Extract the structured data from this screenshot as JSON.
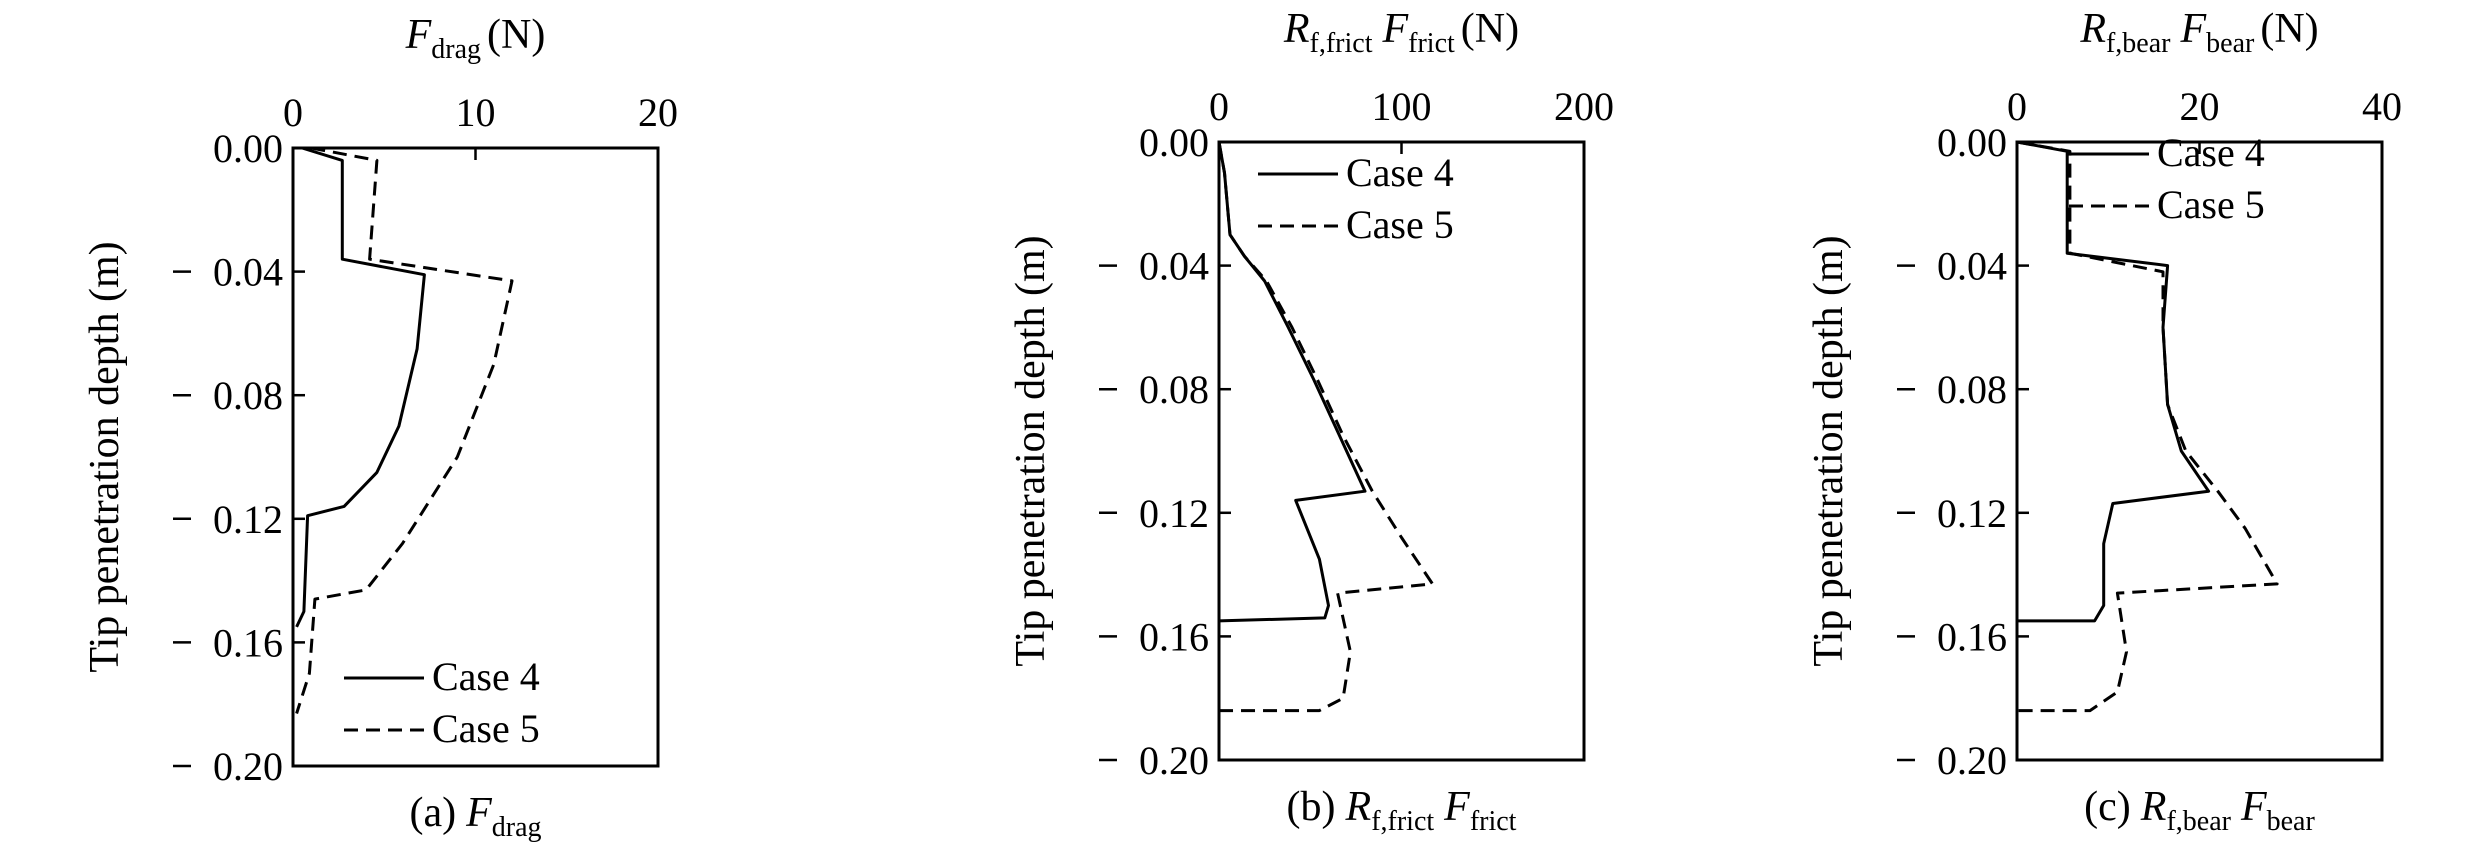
{
  "figure": {
    "y_axis_label": "Tip penetration depth (m)"
  },
  "chart_data": [
    {
      "type": "line",
      "top_label": {
        "main": "F",
        "sub": "drag",
        "unit": "(N)"
      },
      "caption": {
        "prefix": "(a)",
        "main": "F",
        "sub": "drag"
      },
      "xlim": [
        0,
        20
      ],
      "ylim": [
        -0.2,
        0.0
      ],
      "x_ticks": [
        "0",
        "10",
        "20"
      ],
      "y_ticks": [
        "0.00",
        "-0.04",
        "-0.08",
        "-0.12",
        "-0.16",
        "-0.20"
      ],
      "grid": false,
      "legend_position": "bottom-right",
      "series": [
        {
          "name": "Case 4",
          "style": "solid",
          "points": [
            [
              0.5,
              0.0
            ],
            [
              2.7,
              -0.004
            ],
            [
              2.7,
              -0.036
            ],
            [
              7.2,
              -0.041
            ],
            [
              6.8,
              -0.065
            ],
            [
              5.8,
              -0.09
            ],
            [
              4.6,
              -0.105
            ],
            [
              2.8,
              -0.116
            ],
            [
              0.8,
              -0.119
            ],
            [
              0.6,
              -0.15
            ],
            [
              0.2,
              -0.155
            ]
          ]
        },
        {
          "name": "Case 5",
          "style": "dashed",
          "points": [
            [
              1.0,
              0.0
            ],
            [
              4.6,
              -0.004
            ],
            [
              4.2,
              -0.036
            ],
            [
              12.0,
              -0.043
            ],
            [
              11.0,
              -0.07
            ],
            [
              9.0,
              -0.1
            ],
            [
              6.0,
              -0.128
            ],
            [
              4.0,
              -0.143
            ],
            [
              1.2,
              -0.146
            ],
            [
              0.9,
              -0.17
            ],
            [
              0.2,
              -0.183
            ]
          ]
        }
      ]
    },
    {
      "type": "line",
      "top_label": {
        "main": "R",
        "sub1": "f,frict",
        "main2": "F",
        "sub2": "frict",
        "unit": "(N)"
      },
      "caption": {
        "prefix": "(b)",
        "main": "R",
        "sub": "f,frict",
        "main2": "F",
        "sub2": "frict"
      },
      "xlim": [
        0,
        200
      ],
      "ylim": [
        -0.2,
        0.0
      ],
      "x_ticks": [
        "0",
        "100",
        "200"
      ],
      "y_ticks": [
        "0.00",
        "-0.04",
        "-0.08",
        "-0.12",
        "-0.16",
        "-0.20"
      ],
      "grid": false,
      "legend_position": "top-right",
      "series": [
        {
          "name": "Case 4",
          "style": "solid",
          "points": [
            [
              0,
              0.0
            ],
            [
              3,
              -0.01
            ],
            [
              6,
              -0.03
            ],
            [
              14,
              -0.037
            ],
            [
              25,
              -0.045
            ],
            [
              38,
              -0.06
            ],
            [
              52,
              -0.077
            ],
            [
              66,
              -0.095
            ],
            [
              80,
              -0.113
            ],
            [
              42,
              -0.116
            ],
            [
              55,
              -0.135
            ],
            [
              60,
              -0.15
            ],
            [
              58,
              -0.154
            ],
            [
              0,
              -0.155
            ]
          ]
        },
        {
          "name": "Case 5",
          "style": "dashed",
          "points": [
            [
              0,
              0.0
            ],
            [
              3,
              -0.01
            ],
            [
              6,
              -0.03
            ],
            [
              14,
              -0.037
            ],
            [
              26,
              -0.045
            ],
            [
              40,
              -0.06
            ],
            [
              54,
              -0.077
            ],
            [
              68,
              -0.095
            ],
            [
              84,
              -0.113
            ],
            [
              100,
              -0.128
            ],
            [
              117,
              -0.143
            ],
            [
              65,
              -0.146
            ],
            [
              72,
              -0.165
            ],
            [
              68,
              -0.18
            ],
            [
              55,
              -0.184
            ],
            [
              0,
              -0.184
            ]
          ]
        }
      ]
    },
    {
      "type": "line",
      "top_label": {
        "main": "R",
        "sub1": "f,bear",
        "main2": "F",
        "sub2": "bear",
        "unit": "(N)"
      },
      "caption": {
        "prefix": "(c)",
        "main": "R",
        "sub": "f,bear",
        "main2": "F",
        "sub2": "bear"
      },
      "xlim": [
        0,
        40
      ],
      "ylim": [
        -0.2,
        0.0
      ],
      "x_ticks": [
        "0",
        "20",
        "40"
      ],
      "y_ticks": [
        "0.00",
        "-0.04",
        "-0.08",
        "-0.12",
        "-0.16",
        "-0.20"
      ],
      "grid": false,
      "legend_position": "top-right",
      "series": [
        {
          "name": "Case 4",
          "style": "solid",
          "points": [
            [
              0,
              0.0
            ],
            [
              5.5,
              -0.003
            ],
            [
              5.5,
              -0.036
            ],
            [
              16.5,
              -0.04
            ],
            [
              16.0,
              -0.06
            ],
            [
              16.5,
              -0.085
            ],
            [
              18.0,
              -0.1
            ],
            [
              21.0,
              -0.113
            ],
            [
              10.5,
              -0.117
            ],
            [
              9.5,
              -0.13
            ],
            [
              9.5,
              -0.15
            ],
            [
              8.5,
              -0.155
            ],
            [
              0,
              -0.155
            ]
          ]
        },
        {
          "name": "Case 5",
          "style": "dashed",
          "points": [
            [
              0,
              0.0
            ],
            [
              5.8,
              -0.003
            ],
            [
              5.8,
              -0.036
            ],
            [
              16.0,
              -0.042
            ],
            [
              16.0,
              -0.06
            ],
            [
              16.5,
              -0.085
            ],
            [
              18.5,
              -0.1
            ],
            [
              22.0,
              -0.113
            ],
            [
              25.0,
              -0.125
            ],
            [
              28.5,
              -0.143
            ],
            [
              11.0,
              -0.146
            ],
            [
              12.0,
              -0.165
            ],
            [
              11.0,
              -0.178
            ],
            [
              8.0,
              -0.184
            ],
            [
              0,
              -0.184
            ]
          ]
        }
      ]
    }
  ]
}
